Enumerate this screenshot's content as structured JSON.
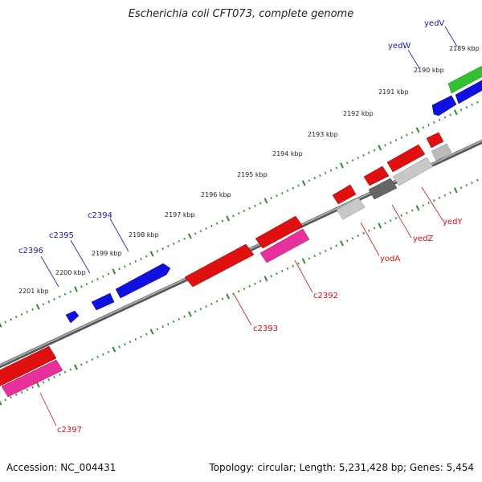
{
  "title": "Escherichia coli CFT073, complete genome",
  "footer": {
    "accession": "Accession: NC_004431",
    "summary": "Topology: circular; Length: 5,231,428 bp; Genes: 5,454"
  },
  "scale_labels": [
    "2189 kbp",
    "2190 kbp",
    "2191 kbp",
    "2192 kbp",
    "2193 kbp",
    "2194 kbp",
    "2195 kbp",
    "2196 kbp",
    "2197 kbp",
    "2198 kbp",
    "2199 kbp",
    "2200 kbp",
    "2201 kbp"
  ],
  "gene_labels": {
    "top": [
      "yedV",
      "yedW",
      "c2394",
      "c2395",
      "c2396"
    ],
    "bottom": [
      "yedY",
      "yedZ",
      "yodA",
      "c2392",
      "c2393",
      "c2397"
    ]
  },
  "colors": {
    "backbone": "#8a8a8a",
    "tick": "#2e8b2e",
    "forward_cds": "#1010e0",
    "reverse_cds": "#e01010",
    "rna": "#e8309a",
    "other": "#bbbbbb",
    "highlight": "#30c030",
    "label_top": "#1a1aa0",
    "label_bottom": "#cc1111"
  }
}
